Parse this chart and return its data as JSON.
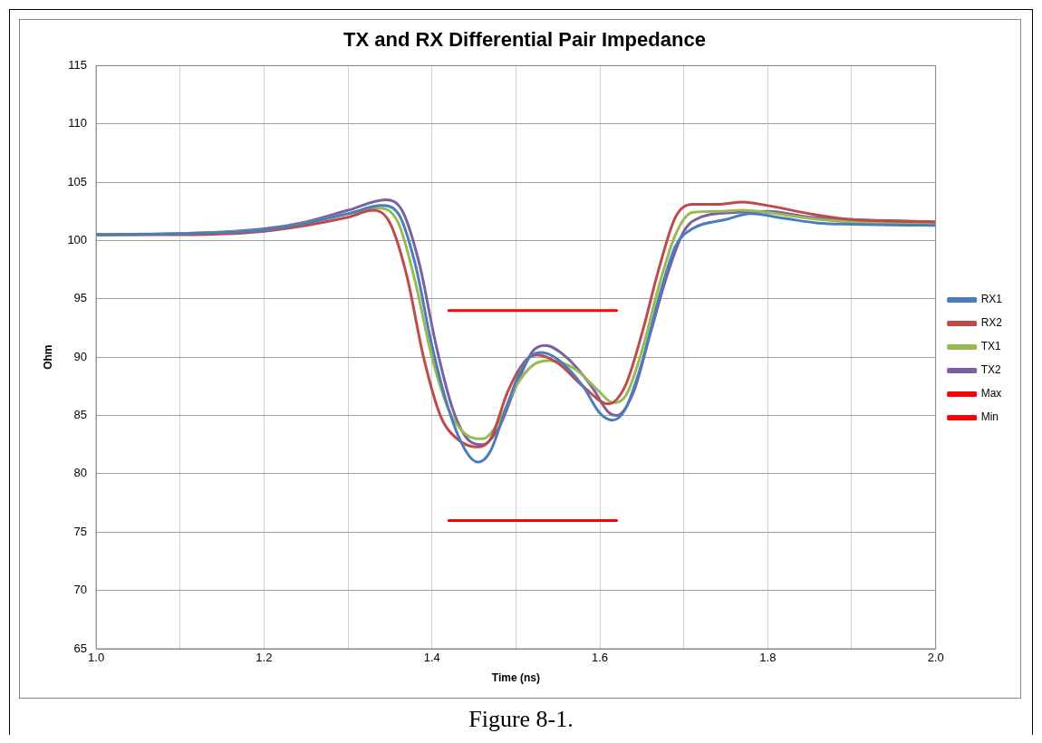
{
  "chart_data": {
    "type": "line",
    "title": "TX and RX Differential Pair Impedance",
    "xlabel": "Time (ns)",
    "ylabel": "Ohm",
    "annotations": [
      "Figure 8-1."
    ],
    "xlim": [
      1.0,
      2.0
    ],
    "xticks": [
      {
        "value": 1.0,
        "label": "1.0"
      },
      {
        "value": 1.1,
        "label": null
      },
      {
        "value": 1.2,
        "label": "1.2"
      },
      {
        "value": 1.3,
        "label": null
      },
      {
        "value": 1.4,
        "label": "1.4"
      },
      {
        "value": 1.5,
        "label": null
      },
      {
        "value": 1.6,
        "label": "1.6"
      },
      {
        "value": 1.7,
        "label": null
      },
      {
        "value": 1.8,
        "label": "1.8"
      },
      {
        "value": 1.9,
        "label": null
      },
      {
        "value": 2.0,
        "label": "2.0"
      }
    ],
    "ylim": [
      65,
      115
    ],
    "yticks": [
      65,
      70,
      75,
      80,
      85,
      90,
      95,
      100,
      105,
      110,
      115
    ],
    "grid": true,
    "legend": "right",
    "marker": "none",
    "line_style": "solid",
    "series": [
      {
        "name": "RX1",
        "color": "#4a7ebb",
        "x": [
          1.0,
          1.1,
          1.2,
          1.25,
          1.3,
          1.34,
          1.36,
          1.38,
          1.4,
          1.42,
          1.44,
          1.455,
          1.47,
          1.49,
          1.51,
          1.53,
          1.55,
          1.58,
          1.6,
          1.615,
          1.63,
          1.65,
          1.67,
          1.69,
          1.71,
          1.75,
          1.78,
          1.82,
          1.86,
          1.9,
          2.0
        ],
        "values": [
          100.5,
          100.6,
          100.9,
          101.5,
          102.3,
          103.0,
          102.3,
          98,
          91,
          85.5,
          82,
          81,
          82,
          86,
          89.5,
          90.4,
          89.8,
          87.5,
          85.2,
          84.6,
          85.5,
          89.5,
          95,
          99.5,
          101,
          101.8,
          102.3,
          101.9,
          101.5,
          101.4,
          101.3
        ]
      },
      {
        "name": "RX2",
        "color": "#be4b48",
        "x": [
          1.0,
          1.1,
          1.2,
          1.3,
          1.33,
          1.35,
          1.37,
          1.39,
          1.41,
          1.43,
          1.455,
          1.47,
          1.49,
          1.51,
          1.525,
          1.55,
          1.58,
          1.61,
          1.63,
          1.65,
          1.67,
          1.69,
          1.71,
          1.74,
          1.77,
          1.8,
          1.85,
          1.9,
          2.0
        ],
        "values": [
          100.5,
          100.5,
          100.8,
          102,
          102.6,
          101.5,
          97,
          90,
          85,
          83,
          82.3,
          83,
          87,
          89.6,
          90.2,
          89.5,
          87.5,
          86,
          87.5,
          92,
          97.5,
          102,
          103.1,
          103.1,
          103.3,
          103,
          102.3,
          101.8,
          101.6
        ]
      },
      {
        "name": "TX1",
        "color": "#98b954",
        "x": [
          1.0,
          1.2,
          1.3,
          1.335,
          1.36,
          1.38,
          1.4,
          1.42,
          1.44,
          1.46,
          1.48,
          1.5,
          1.52,
          1.54,
          1.57,
          1.6,
          1.615,
          1.63,
          1.65,
          1.67,
          1.69,
          1.71,
          1.74,
          1.77,
          1.8,
          1.85,
          1.9,
          2.0
        ],
        "values": [
          100.5,
          100.9,
          102.3,
          102.8,
          101.5,
          96.5,
          90,
          85.5,
          83.4,
          83,
          84.5,
          87.5,
          89.3,
          89.7,
          89,
          87,
          86.1,
          86.6,
          90.5,
          96,
          100.5,
          102.4,
          102.5,
          102.6,
          102.4,
          101.9,
          101.6,
          101.5
        ]
      },
      {
        "name": "TX2",
        "color": "#7d60a0",
        "x": [
          1.0,
          1.1,
          1.2,
          1.25,
          1.3,
          1.345,
          1.365,
          1.385,
          1.405,
          1.425,
          1.445,
          1.46,
          1.48,
          1.5,
          1.52,
          1.535,
          1.56,
          1.59,
          1.61,
          1.62,
          1.64,
          1.66,
          1.68,
          1.7,
          1.72,
          1.76,
          1.8,
          1.85,
          1.9,
          2.0
        ],
        "values": [
          100.5,
          100.6,
          101,
          101.6,
          102.6,
          103.5,
          102.5,
          98,
          91,
          85.5,
          82.8,
          82.5,
          84,
          87.5,
          90.5,
          91,
          90,
          87.5,
          85.3,
          85,
          87,
          92,
          97,
          100.8,
          102,
          102.4,
          102.5,
          102,
          101.8,
          101.6
        ]
      },
      {
        "name": "Max",
        "color": "#ff0000",
        "x": [
          1.42,
          1.62
        ],
        "values": [
          94,
          94
        ]
      },
      {
        "name": "Min",
        "color": "#ff0000",
        "x": [
          1.42,
          1.62
        ],
        "values": [
          76,
          76
        ]
      }
    ]
  }
}
